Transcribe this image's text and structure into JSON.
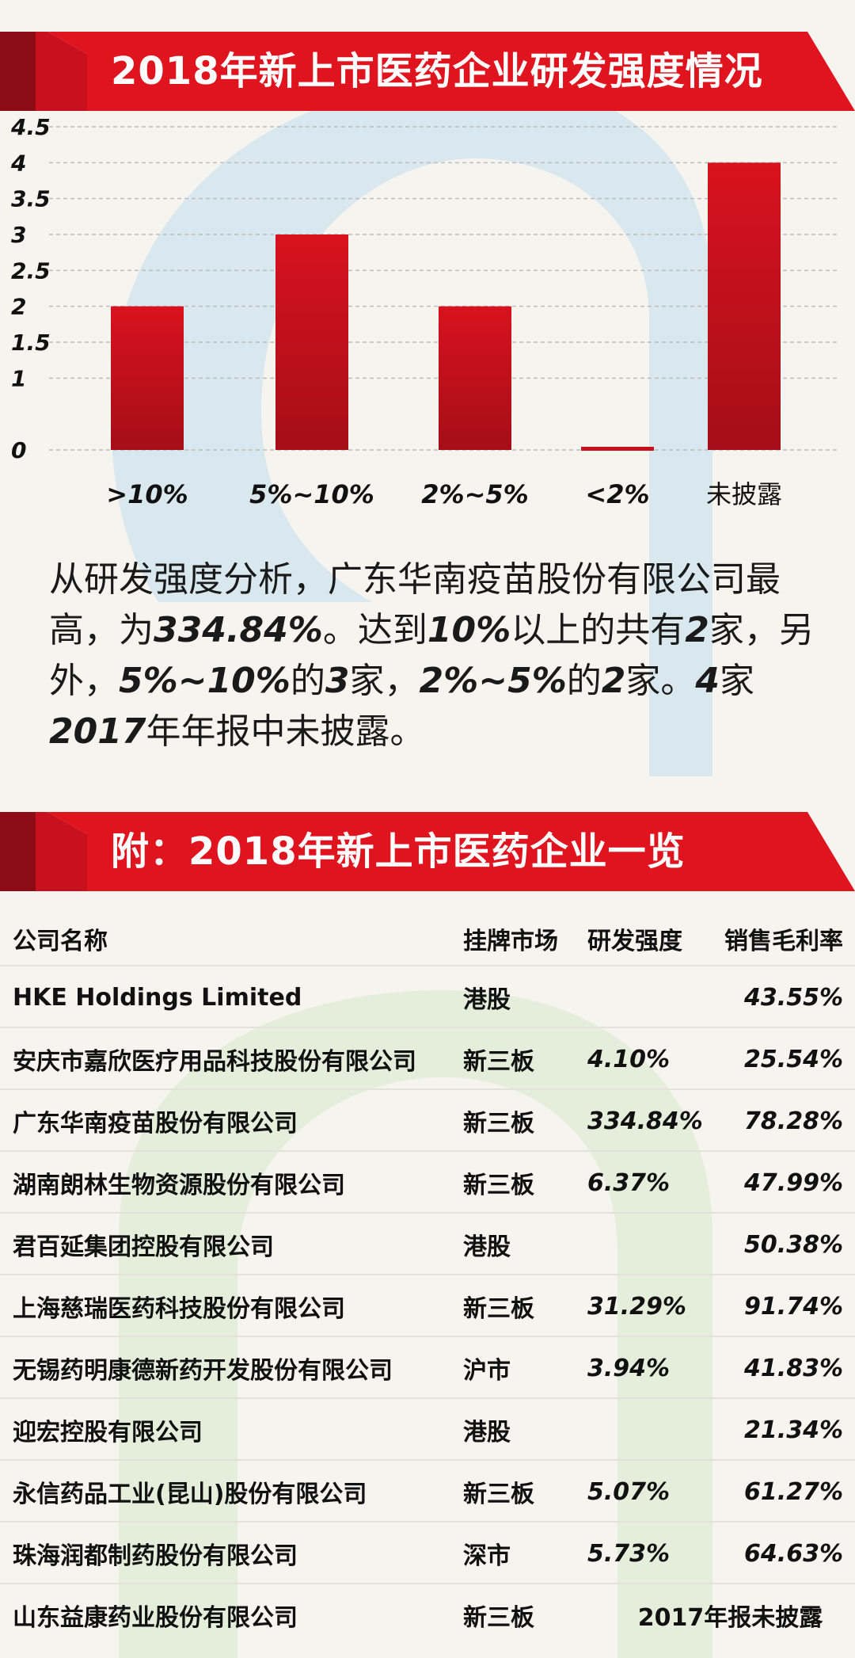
{
  "colors": {
    "red": "#c8101f",
    "dark_red": "#8c0b14",
    "bg": "#f5f4ef",
    "blue_deco": "#cfe3ee",
    "green_deco": "#e1ecd6"
  },
  "section1": {
    "title": "2018年新上市医药企业研发强度情况"
  },
  "chart_data": {
    "type": "bar",
    "categories": [
      ">10%",
      "5%~10%",
      "2%~5%",
      "<2%",
      "未披露"
    ],
    "values": [
      2,
      3,
      2,
      0,
      4
    ],
    "ylim": [
      0,
      4.5
    ],
    "yticks": [
      "0",
      "1",
      "1.5",
      "2",
      "2.5",
      "3",
      "3.5",
      "4",
      "4.5"
    ],
    "grid": true
  },
  "paragraph": {
    "p1": "从研发强度分析，广东华南疫苗股份有限公司最高，为",
    "b1": "334.84%",
    "p2": "。达到",
    "b2": "10%",
    "p3": "以上的共有",
    "b3": "2",
    "p4": "家，另外，",
    "b4": "5%~10%",
    "p5": "的",
    "b5": "3",
    "p6": "家，",
    "b6": "2%~5%",
    "p7": "的",
    "b7": "2",
    "p8": "家。",
    "b8": "4",
    "p9": "家",
    "b9": "2017",
    "p10": "年年报中未披露。"
  },
  "section2": {
    "title": "附：2018年新上市医药企业一览"
  },
  "table": {
    "headers": {
      "name": "公司名称",
      "market": "挂牌市场",
      "rd": "研发强度",
      "margin": "销售毛利率"
    },
    "rows": [
      {
        "name": "HKE Holdings Limited",
        "market": "港股",
        "rd": "",
        "margin": "43.55%"
      },
      {
        "name": "安庆市嘉欣医疗用品科技股份有限公司",
        "market": "新三板",
        "rd": "4.10%",
        "margin": "25.54%"
      },
      {
        "name": "广东华南疫苗股份有限公司",
        "market": "新三板",
        "rd": "334.84%",
        "margin": "78.28%"
      },
      {
        "name": "湖南朗林生物资源股份有限公司",
        "market": "新三板",
        "rd": "6.37%",
        "margin": "47.99%"
      },
      {
        "name": "君百延集团控股有限公司",
        "market": "港股",
        "rd": "",
        "margin": "50.38%"
      },
      {
        "name": "上海慈瑞医药科技股份有限公司",
        "market": "新三板",
        "rd": "31.29%",
        "margin": "91.74%"
      },
      {
        "name": "无锡药明康德新药开发股份有限公司",
        "market": "沪市",
        "rd": "3.94%",
        "margin": "41.83%"
      },
      {
        "name": "迎宏控股有限公司",
        "market": "港股",
        "rd": "",
        "margin": "21.34%"
      },
      {
        "name": "永信药品工业(昆山)股份有限公司",
        "market": "新三板",
        "rd": "5.07%",
        "margin": "61.27%"
      },
      {
        "name": "珠海润都制药股份有限公司",
        "market": "深市",
        "rd": "5.73%",
        "margin": "64.63%"
      }
    ],
    "last_row": {
      "name": "山东益康药业股份有限公司",
      "market": "新三板",
      "note": "2017年报未披露"
    }
  }
}
